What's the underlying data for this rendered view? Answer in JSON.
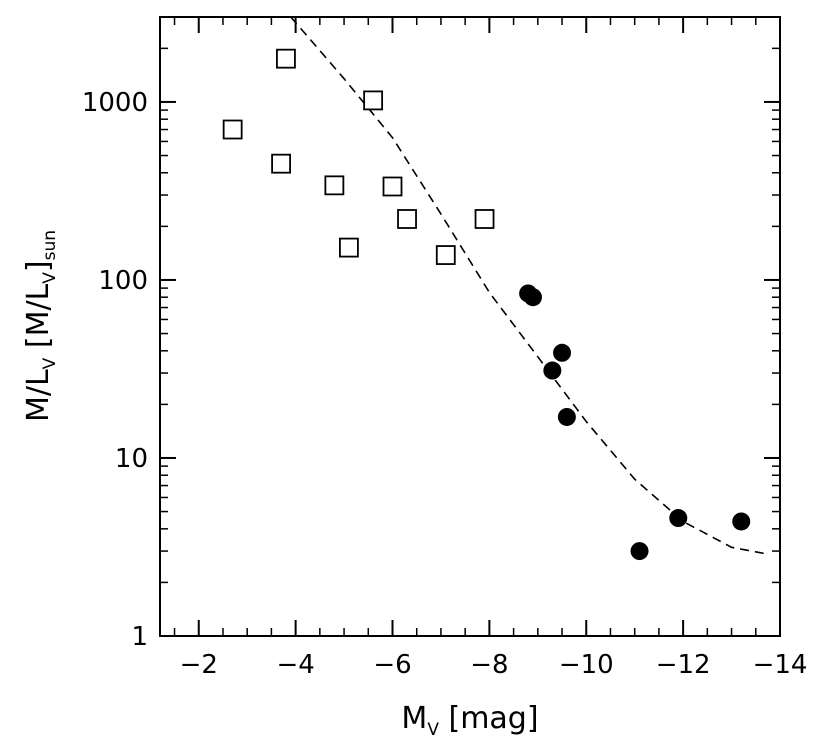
{
  "chart_data": {
    "type": "scatter",
    "title": "",
    "xlabel": {
      "main": "M",
      "sub": "V",
      "unit": "[mag]"
    },
    "ylabel": {
      "part1": "M/L",
      "sub1": "V",
      "part2": "[M/L",
      "sub2": "V",
      "part3": "]",
      "sub3": "sun"
    },
    "x_axis": {
      "range": [
        -1.2,
        -14
      ],
      "reversed": true,
      "tick_values": [
        -2,
        -4,
        -6,
        -8,
        -10,
        -12,
        -14
      ],
      "tick_labels": [
        "−2",
        "−4",
        "−6",
        "−8",
        "−10",
        "−12",
        "−14"
      ]
    },
    "y_axis": {
      "scale": "log",
      "range": [
        1,
        3000
      ],
      "tick_values": [
        1,
        10,
        100,
        1000
      ],
      "tick_labels": [
        "1",
        "10",
        "100",
        "1000"
      ]
    },
    "series": [
      {
        "name": "open squares",
        "marker": "square-open",
        "points": [
          {
            "x": -2.7,
            "y": 700
          },
          {
            "x": -3.7,
            "y": 450
          },
          {
            "x": -3.8,
            "y": 1750
          },
          {
            "x": -4.8,
            "y": 340
          },
          {
            "x": -5.1,
            "y": 152
          },
          {
            "x": -5.6,
            "y": 1020
          },
          {
            "x": -6.0,
            "y": 335
          },
          {
            "x": -6.3,
            "y": 220
          },
          {
            "x": -7.1,
            "y": 138
          },
          {
            "x": -7.9,
            "y": 220
          }
        ]
      },
      {
        "name": "filled circles",
        "marker": "circle-filled",
        "points": [
          {
            "x": -8.8,
            "y": 84
          },
          {
            "x": -8.9,
            "y": 80
          },
          {
            "x": -9.3,
            "y": 31
          },
          {
            "x": -9.5,
            "y": 39
          },
          {
            "x": -9.6,
            "y": 17
          },
          {
            "x": -11.1,
            "y": 3.0
          },
          {
            "x": -11.9,
            "y": 4.6
          },
          {
            "x": -13.2,
            "y": 4.4
          }
        ]
      },
      {
        "name": "model curve",
        "marker": "dashed-line",
        "points": [
          {
            "x": -3.9,
            "y": 3000
          },
          {
            "x": -5.0,
            "y": 1350
          },
          {
            "x": -6.0,
            "y": 630
          },
          {
            "x": -7.0,
            "y": 235
          },
          {
            "x": -8.0,
            "y": 85
          },
          {
            "x": -9.0,
            "y": 37
          },
          {
            "x": -10.0,
            "y": 16
          },
          {
            "x": -11.0,
            "y": 7.6
          },
          {
            "x": -12.0,
            "y": 4.4
          },
          {
            "x": -13.0,
            "y": 3.15
          },
          {
            "x": -13.7,
            "y": 2.9
          }
        ]
      }
    ],
    "grid": false,
    "legend": "none"
  }
}
